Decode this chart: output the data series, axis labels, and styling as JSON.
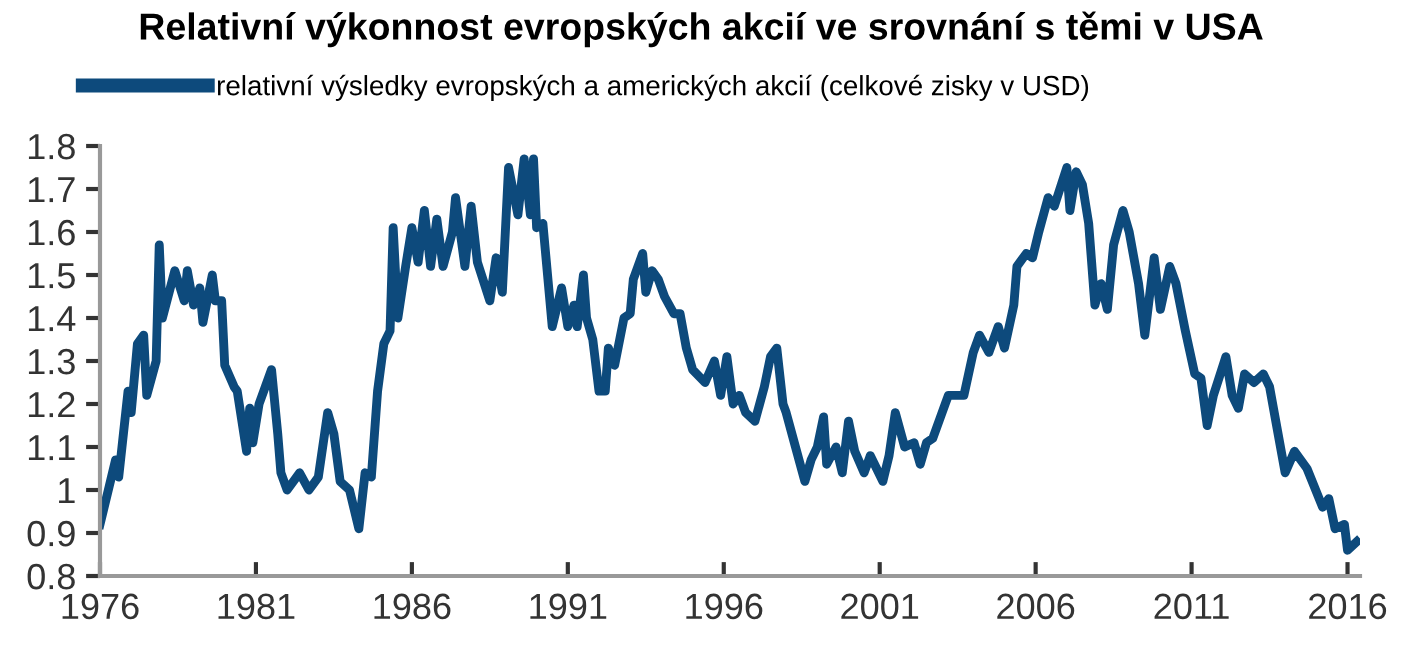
{
  "chart_data": {
    "type": "line",
    "title": "Relativní výkonnost evropských akcií ve srovnání s těmi v USA",
    "x": [
      1976.0,
      1976.3,
      1976.5,
      1976.6,
      1976.9,
      1977.0,
      1977.2,
      1977.4,
      1977.5,
      1977.8,
      1977.9,
      1978.0,
      1978.4,
      1978.7,
      1978.8,
      1979.0,
      1979.2,
      1979.3,
      1979.6,
      1979.7,
      1979.9,
      1980.0,
      1980.3,
      1980.4,
      1980.7,
      1980.8,
      1980.9,
      1981.1,
      1981.3,
      1981.5,
      1981.7,
      1981.8,
      1982.0,
      1982.4,
      1982.7,
      1983.0,
      1983.3,
      1983.5,
      1983.7,
      1984.0,
      1984.3,
      1984.5,
      1984.7,
      1984.9,
      1985.1,
      1985.3,
      1985.4,
      1985.55,
      1985.8,
      1986.0,
      1986.2,
      1986.4,
      1986.6,
      1986.8,
      1987.0,
      1987.3,
      1987.4,
      1987.7,
      1987.9,
      1988.1,
      1988.5,
      1988.7,
      1988.9,
      1989.1,
      1989.4,
      1989.6,
      1989.8,
      1989.9,
      1990.0,
      1990.2,
      1990.4,
      1990.5,
      1990.8,
      1991.0,
      1991.2,
      1991.3,
      1991.5,
      1991.6,
      1991.8,
      1992.0,
      1992.2,
      1992.3,
      1992.5,
      1992.8,
      1993.0,
      1993.1,
      1993.4,
      1993.5,
      1993.7,
      1993.9,
      1994.1,
      1994.4,
      1994.6,
      1994.8,
      1995.0,
      1995.4,
      1995.7,
      1995.9,
      1996.1,
      1996.3,
      1996.5,
      1996.7,
      1997.0,
      1997.3,
      1997.5,
      1997.7,
      1997.9,
      1998.0,
      1998.3,
      1998.6,
      1998.8,
      1999.0,
      1999.2,
      1999.3,
      1999.6,
      1999.8,
      2000.0,
      2000.2,
      2000.5,
      2000.7,
      2000.9,
      2001.1,
      2001.3,
      2001.5,
      2001.8,
      2002.1,
      2002.3,
      2002.5,
      2002.7,
      2003.1,
      2003.2,
      2003.7,
      2004.0,
      2004.2,
      2004.5,
      2004.8,
      2005.0,
      2005.3,
      2005.4,
      2005.7,
      2005.9,
      2006.1,
      2006.4,
      2006.6,
      2007.0,
      2007.1,
      2007.3,
      2007.5,
      2007.7,
      2007.9,
      2008.1,
      2008.3,
      2008.5,
      2008.8,
      2009.0,
      2009.3,
      2009.5,
      2009.8,
      2010.0,
      2010.3,
      2010.5,
      2010.8,
      2011.1,
      2011.3,
      2011.5,
      2011.7,
      2012.1,
      2012.3,
      2012.5,
      2012.7,
      2013.0,
      2013.3,
      2013.5,
      2014.0,
      2014.3,
      2014.7,
      2015.2,
      2015.4,
      2015.6,
      2015.9,
      2016.0,
      2016.3
    ],
    "series": [
      {
        "name": "relativní výsledky evropských a amerických akcií (celkové zisky v USD)",
        "color": "#0d4a7c",
        "values": [
          0.92,
          1.01,
          1.07,
          1.03,
          1.23,
          1.18,
          1.34,
          1.36,
          1.22,
          1.3,
          1.57,
          1.4,
          1.51,
          1.44,
          1.51,
          1.43,
          1.47,
          1.39,
          1.5,
          1.44,
          1.44,
          1.29,
          1.24,
          1.23,
          1.09,
          1.19,
          1.11,
          1.2,
          1.24,
          1.28,
          1.13,
          1.04,
          1.0,
          1.04,
          1.0,
          1.03,
          1.18,
          1.13,
          1.02,
          1.0,
          0.91,
          1.04,
          1.03,
          1.23,
          1.34,
          1.37,
          1.61,
          1.4,
          1.52,
          1.61,
          1.53,
          1.65,
          1.52,
          1.63,
          1.52,
          1.6,
          1.68,
          1.52,
          1.66,
          1.53,
          1.44,
          1.54,
          1.46,
          1.75,
          1.64,
          1.77,
          1.64,
          1.77,
          1.61,
          1.62,
          1.46,
          1.38,
          1.47,
          1.38,
          1.43,
          1.38,
          1.5,
          1.4,
          1.35,
          1.23,
          1.23,
          1.33,
          1.29,
          1.4,
          1.41,
          1.49,
          1.55,
          1.46,
          1.51,
          1.49,
          1.45,
          1.41,
          1.41,
          1.33,
          1.28,
          1.25,
          1.3,
          1.22,
          1.31,
          1.2,
          1.22,
          1.18,
          1.16,
          1.24,
          1.31,
          1.33,
          1.2,
          1.18,
          1.1,
          1.02,
          1.07,
          1.1,
          1.17,
          1.06,
          1.1,
          1.04,
          1.16,
          1.09,
          1.04,
          1.08,
          1.05,
          1.02,
          1.08,
          1.18,
          1.1,
          1.11,
          1.06,
          1.11,
          1.12,
          1.2,
          1.22,
          1.22,
          1.32,
          1.36,
          1.32,
          1.38,
          1.33,
          1.43,
          1.52,
          1.55,
          1.54,
          1.6,
          1.68,
          1.66,
          1.75,
          1.65,
          1.74,
          1.71,
          1.62,
          1.43,
          1.48,
          1.42,
          1.57,
          1.65,
          1.6,
          1.48,
          1.36,
          1.54,
          1.42,
          1.52,
          1.48,
          1.37,
          1.27,
          1.26,
          1.15,
          1.22,
          1.31,
          1.22,
          1.19,
          1.27,
          1.25,
          1.27,
          1.24,
          1.04,
          1.09,
          1.05,
          0.96,
          0.98,
          0.91,
          0.92,
          0.86,
          0.88
        ]
      }
    ],
    "xlim": [
      1976,
      2016.4
    ],
    "xticks": [
      1976,
      1981,
      1986,
      1991,
      1996,
      2001,
      2006,
      2011,
      2016
    ],
    "ylim": [
      0.8,
      1.8
    ],
    "yticks": [
      0.8,
      0.9,
      1,
      1.1,
      1.2,
      1.3,
      1.4,
      1.5,
      1.6,
      1.7,
      1.8
    ],
    "grid": false,
    "legend": "top left",
    "marker": "none",
    "line_style": "solid"
  }
}
